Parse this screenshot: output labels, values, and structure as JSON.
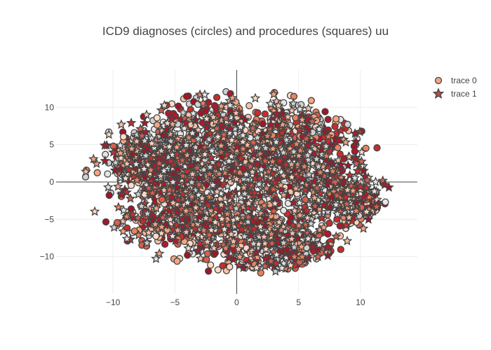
{
  "chart_data": {
    "type": "scatter",
    "title": "ICD9 diagnoses (circles) and procedures (squares) uu",
    "xlabel": "",
    "ylabel": "",
    "xlim": [
      -14.6,
      14.6
    ],
    "ylim": [
      -15,
      15
    ],
    "x_ticks": [
      -10,
      -5,
      0,
      5,
      10
    ],
    "y_ticks": [
      -10,
      -5,
      0,
      5,
      10
    ],
    "x_tick_labels": [
      "−10",
      "−5",
      "0",
      "5",
      "10"
    ],
    "y_tick_labels": [
      "−10",
      "−5",
      "0",
      "5",
      "10"
    ],
    "grid": true,
    "zero_lines": true,
    "legend_position": "top-right",
    "series": [
      {
        "name": "trace 0",
        "marker": "circle",
        "legend_color": "#f4a57f",
        "line_color": "#444444",
        "approx_points": 2000,
        "clusters": [
          {
            "center": [
              -6,
              3
            ],
            "spread": [
              2.5,
              2.5
            ],
            "weight": 0.16
          },
          {
            "center": [
              -5,
              -4
            ],
            "spread": [
              2.2,
              2.5
            ],
            "weight": 0.12
          },
          {
            "center": [
              2,
              2
            ],
            "spread": [
              4,
              4.5
            ],
            "weight": 0.22
          },
          {
            "center": [
              4,
              -8
            ],
            "spread": [
              3,
              2.5
            ],
            "weight": 0.15
          },
          {
            "center": [
              5,
              6
            ],
            "spread": [
              3,
              2.5
            ],
            "weight": 0.1
          },
          {
            "center": [
              10,
              -3
            ],
            "spread": [
              1.2,
              1.2
            ],
            "weight": 0.06
          },
          {
            "center": [
              -2,
              -6
            ],
            "spread": [
              3,
              3
            ],
            "weight": 0.12
          },
          {
            "center": [
              -2,
              8
            ],
            "spread": [
              3,
              2.5
            ],
            "weight": 0.07
          }
        ]
      },
      {
        "name": "trace 1",
        "marker": "star",
        "legend_color": "#b84a4a",
        "line_color": "#444444",
        "approx_points": 1200,
        "clusters": [
          {
            "center": [
              -6,
              3
            ],
            "spread": [
              3,
              3
            ],
            "weight": 0.2
          },
          {
            "center": [
              0,
              4
            ],
            "spread": [
              4,
              4
            ],
            "weight": 0.25
          },
          {
            "center": [
              3,
              -8
            ],
            "spread": [
              3,
              3
            ],
            "weight": 0.15
          },
          {
            "center": [
              6,
              2
            ],
            "spread": [
              3,
              4
            ],
            "weight": 0.15
          },
          {
            "center": [
              -4,
              -4
            ],
            "spread": [
              3,
              3
            ],
            "weight": 0.15
          },
          {
            "center": [
              9,
              -2
            ],
            "spread": [
              2,
              2
            ],
            "weight": 0.1
          }
        ]
      }
    ],
    "color_palette": [
      "#b2182b",
      "#ca2c2c",
      "#d6604d",
      "#e7845f",
      "#f4a582",
      "#f7c2a8",
      "#fddbc7",
      "#e6e6e6",
      "#d1d1d1",
      "#a31526"
    ]
  }
}
